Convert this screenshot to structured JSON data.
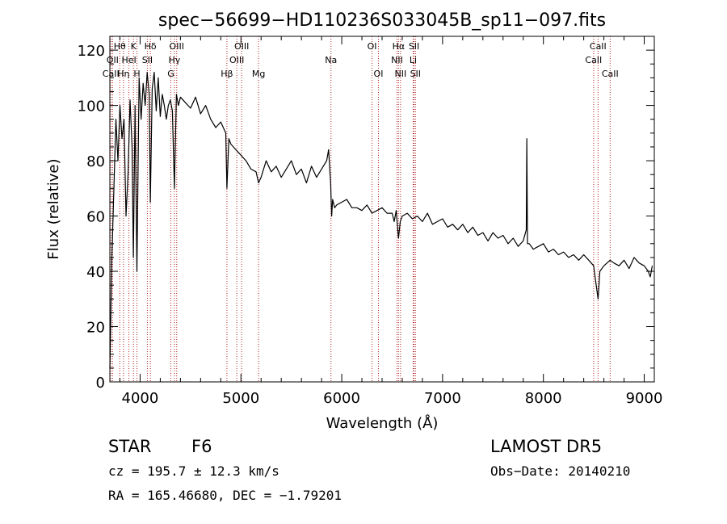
{
  "chart_data": {
    "type": "line",
    "title": "spec−56699−HD110236S033045B_sp11−097.fits",
    "xlabel": "Wavelength (Å)",
    "ylabel": "Flux (relative)",
    "xlim": [
      3700,
      9100
    ],
    "ylim": [
      0,
      125
    ],
    "xticks": [
      4000,
      5000,
      6000,
      7000,
      8000,
      9000
    ],
    "yticks": [
      0,
      20,
      40,
      60,
      80,
      100,
      120
    ],
    "grid": false,
    "line_color": "#000000",
    "marker_color": "#b22222",
    "series": [
      {
        "x": [
          3700,
          3720,
          3740,
          3760,
          3780,
          3800,
          3820,
          3840,
          3860,
          3880,
          3900,
          3920,
          3933,
          3950,
          3968,
          3990,
          4010,
          4030,
          4050,
          4070,
          4090,
          4101,
          4120,
          4140,
          4160,
          4180,
          4200,
          4220,
          4240,
          4260,
          4280,
          4300,
          4320,
          4340,
          4360,
          4380,
          4400,
          4450,
          4500,
          4550,
          4600,
          4650,
          4700,
          4750,
          4800,
          4850,
          4861,
          4880,
          4900,
          4950,
          5000,
          5050,
          5100,
          5150,
          5175,
          5200,
          5250,
          5300,
          5350,
          5400,
          5450,
          5500,
          5550,
          5600,
          5650,
          5700,
          5750,
          5800,
          5850,
          5870,
          5890,
          5900,
          5910,
          5930,
          5950,
          6000,
          6050,
          6100,
          6150,
          6200,
          6250,
          6300,
          6350,
          6400,
          6450,
          6500,
          6520,
          6540,
          6563,
          6580,
          6600,
          6650,
          6700,
          6750,
          6800,
          6850,
          6900,
          6950,
          7000,
          7050,
          7100,
          7150,
          7200,
          7250,
          7300,
          7350,
          7400,
          7450,
          7500,
          7550,
          7600,
          7650,
          7700,
          7750,
          7800,
          7830,
          7836,
          7842,
          7860,
          7900,
          7950,
          8000,
          8050,
          8100,
          8150,
          8200,
          8250,
          8300,
          8350,
          8400,
          8450,
          8498,
          8520,
          8542,
          8560,
          8600,
          8662,
          8700,
          8750,
          8800,
          8850,
          8900,
          8950,
          9000,
          9040,
          9060,
          9080
        ],
        "y": [
          5,
          45,
          70,
          95,
          80,
          100,
          88,
          95,
          60,
          75,
          102,
          85,
          45,
          100,
          40,
          110,
          95,
          108,
          100,
          112,
          104,
          65,
          106,
          112,
          98,
          110,
          96,
          104,
          100,
          95,
          100,
          102,
          98,
          70,
          104,
          100,
          103,
          101,
          99,
          103,
          97,
          100,
          95,
          92,
          94,
          90,
          70,
          88,
          86,
          84,
          82,
          80,
          77,
          76,
          72,
          74,
          80,
          76,
          78,
          74,
          77,
          80,
          75,
          77,
          72,
          78,
          74,
          77,
          80,
          84,
          72,
          60,
          66,
          63,
          64,
          65,
          66,
          63,
          63,
          62,
          64,
          61,
          62,
          63,
          61,
          61,
          58,
          62,
          52,
          58,
          60,
          61,
          59,
          60,
          58,
          61,
          57,
          58,
          59,
          56,
          57,
          55,
          57,
          54,
          56,
          53,
          54,
          51,
          54,
          52,
          53,
          50,
          52,
          49,
          51,
          55,
          88,
          50,
          50,
          48,
          49,
          50,
          47,
          48,
          46,
          47,
          45,
          46,
          44,
          46,
          44,
          42,
          36,
          30,
          40,
          42,
          44,
          43,
          42,
          44,
          41,
          45,
          43,
          42,
          40,
          38,
          42
        ]
      }
    ],
    "lines": [
      {
        "label": "Hθ",
        "x": 3798,
        "row": 1
      },
      {
        "label": "OII",
        "x": 3727,
        "row": 2
      },
      {
        "label": "CaII",
        "x": 3710,
        "row": 3
      },
      {
        "label": "Hη",
        "x": 3835,
        "row": 3
      },
      {
        "label": "K",
        "x": 3934,
        "row": 1
      },
      {
        "label": "HeI",
        "x": 3889,
        "row": 2
      },
      {
        "label": "H",
        "x": 3969,
        "row": 3
      },
      {
        "label": "Hδ",
        "x": 4102,
        "row": 1
      },
      {
        "label": "SII",
        "x": 4072,
        "row": 2
      },
      {
        "label": "OIII",
        "x": 4363,
        "row": 1
      },
      {
        "label": "Hγ",
        "x": 4340,
        "row": 2
      },
      {
        "label": "G",
        "x": 4305,
        "row": 3
      },
      {
        "label": "OIII",
        "x": 5007,
        "row": 1
      },
      {
        "label": "OIII",
        "x": 4959,
        "row": 2
      },
      {
        "label": "Hβ",
        "x": 4861,
        "row": 3
      },
      {
        "label": "Mg",
        "x": 5175,
        "row": 3
      },
      {
        "label": "Na",
        "x": 5893,
        "row": 2
      },
      {
        "label": "OI",
        "x": 6300,
        "row": 1
      },
      {
        "label": "OI",
        "x": 6364,
        "row": 3
      },
      {
        "label": "Hα",
        "x": 6563,
        "row": 1
      },
      {
        "label": "NII",
        "x": 6548,
        "row": 2
      },
      {
        "label": "NII",
        "x": 6583,
        "row": 3
      },
      {
        "label": "SII",
        "x": 6717,
        "row": 1
      },
      {
        "label": "Li",
        "x": 6708,
        "row": 2
      },
      {
        "label": "SII",
        "x": 6731,
        "row": 3
      },
      {
        "label": "CaII",
        "x": 8542,
        "row": 1
      },
      {
        "label": "CaII",
        "x": 8498,
        "row": 2
      },
      {
        "label": "CaII",
        "x": 8662,
        "row": 3
      }
    ]
  },
  "info": {
    "class_label": "STAR",
    "subclass": "F6",
    "survey": "LAMOST  DR5",
    "cz": "cz = 195.7 ± 12.3 km/s",
    "obs_date": "Obs−Date: 20140210",
    "coords": "RA = 165.46680, DEC =  −1.79201"
  }
}
